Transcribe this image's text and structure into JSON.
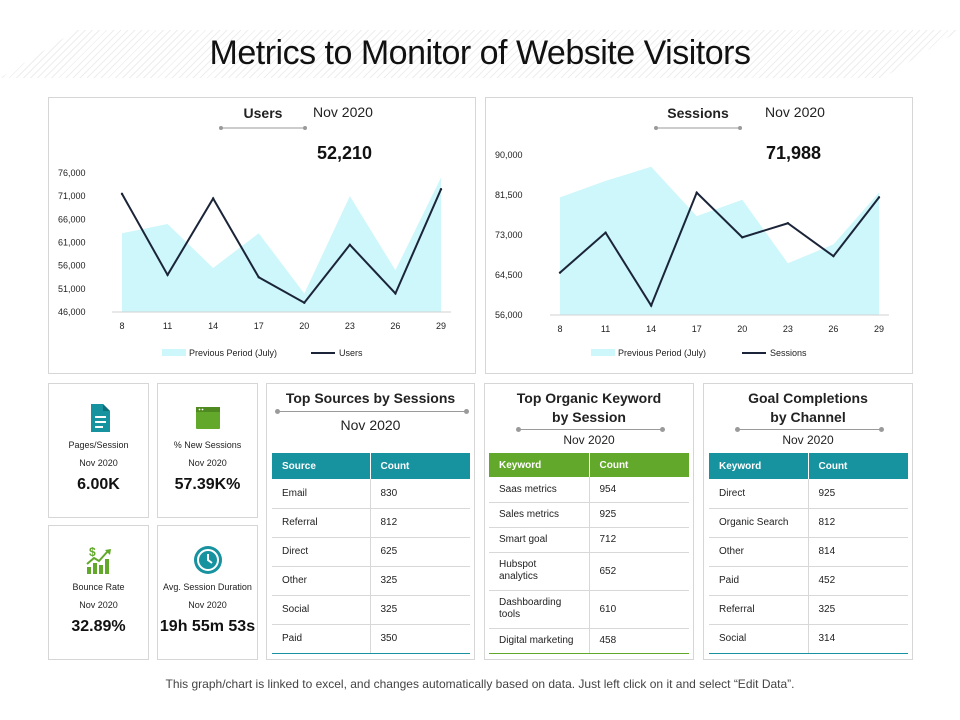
{
  "page": {
    "title": "Metrics to Monitor of Website Visitors",
    "footer": "This graph/chart is linked to excel, and changes automatically based on data. Just left click on it and select “Edit Data”."
  },
  "colors": {
    "teal": "#17929f",
    "green": "#62a82b",
    "area": "#cdf7fb",
    "line": "#1b2438"
  },
  "users_chart": {
    "heading": "Users",
    "date": "Nov 2020",
    "value": "52,210",
    "legend_area": "Previous Period (July)",
    "legend_line": "Users"
  },
  "sessions_chart": {
    "heading": "Sessions",
    "date": "Nov 2020",
    "value": "71,988",
    "legend_area": "Previous Period (July)",
    "legend_line": "Sessions"
  },
  "chart_data": [
    {
      "type": "line",
      "x": [
        8,
        11,
        14,
        17,
        20,
        23,
        26,
        29
      ],
      "xticks": [
        "8",
        "11",
        "14",
        "17",
        "20",
        "23",
        "26",
        "29"
      ],
      "yticks": [
        "46,000",
        "51,000",
        "56,000",
        "61,000",
        "66,000",
        "71,000",
        "76,000"
      ],
      "ylim": [
        46000,
        76000
      ],
      "series": [
        {
          "name": "Previous Period (July)",
          "kind": "area",
          "values": [
            63000,
            65000,
            55500,
            63000,
            50000,
            71000,
            55000,
            75000
          ]
        },
        {
          "name": "Users",
          "kind": "line",
          "values": [
            71500,
            54000,
            70500,
            53500,
            48000,
            60500,
            50000,
            72500
          ]
        }
      ]
    },
    {
      "type": "line",
      "x": [
        8,
        11,
        14,
        17,
        20,
        23,
        26,
        29
      ],
      "xticks": [
        "8",
        "11",
        "14",
        "17",
        "20",
        "23",
        "26",
        "29"
      ],
      "yticks": [
        "56,000",
        "64,500",
        "73,000",
        "81,500",
        "90,000"
      ],
      "ylim": [
        56000,
        90000
      ],
      "series": [
        {
          "name": "Previous Period (July)",
          "kind": "area",
          "values": [
            81000,
            84500,
            87500,
            77000,
            80500,
            67000,
            71000,
            82000
          ]
        },
        {
          "name": "Sessions",
          "kind": "line",
          "values": [
            65000,
            73500,
            58000,
            82000,
            72500,
            75500,
            68500,
            81000
          ]
        }
      ]
    }
  ],
  "metrics": [
    {
      "label": "Pages/Session",
      "date": "Nov 2020",
      "value": "6.00K",
      "icon": "document-icon"
    },
    {
      "label": "% New Sessions",
      "date": "Nov 2020",
      "value": "57.39K%",
      "icon": "browser-window-icon"
    },
    {
      "label": "Bounce Rate",
      "date": "Nov 2020",
      "value": "32.89%",
      "icon": "dollar-growth-chart-icon"
    },
    {
      "label": "Avg. Session Duration",
      "date": "Nov 2020",
      "value": "19h 55m 53s",
      "icon": "clock-icon"
    }
  ],
  "sources": {
    "title": "Top Sources by Sessions",
    "date": "Nov 2020",
    "columns": [
      "Source",
      "Count"
    ],
    "rows": [
      [
        "Email",
        "830"
      ],
      [
        "Referral",
        "812"
      ],
      [
        "Direct",
        "625"
      ],
      [
        "Other",
        "325"
      ],
      [
        "Social",
        "325"
      ],
      [
        "Paid",
        "350"
      ]
    ]
  },
  "keywords": {
    "title_line1": "Top Organic Keyword",
    "title_line2": "by Session",
    "date": "Nov 2020",
    "columns": [
      "Keyword",
      "Count"
    ],
    "rows": [
      [
        "Saas metrics",
        "954"
      ],
      [
        "Sales metrics",
        "925"
      ],
      [
        "Smart goal",
        "712"
      ],
      [
        "Hubspot analytics",
        "652"
      ],
      [
        "Dashboarding tools",
        "610"
      ],
      [
        "Digital marketing",
        "458"
      ]
    ]
  },
  "goals": {
    "title_line1": "Goal Completions",
    "title_line2": "by Channel",
    "date": "Nov 2020",
    "columns": [
      "Keyword",
      "Count"
    ],
    "rows": [
      [
        "Direct",
        "925"
      ],
      [
        "Organic Search",
        "812"
      ],
      [
        "Other",
        "814"
      ],
      [
        "Paid",
        "452"
      ],
      [
        "Referral",
        "325"
      ],
      [
        "Social",
        "314"
      ]
    ]
  }
}
